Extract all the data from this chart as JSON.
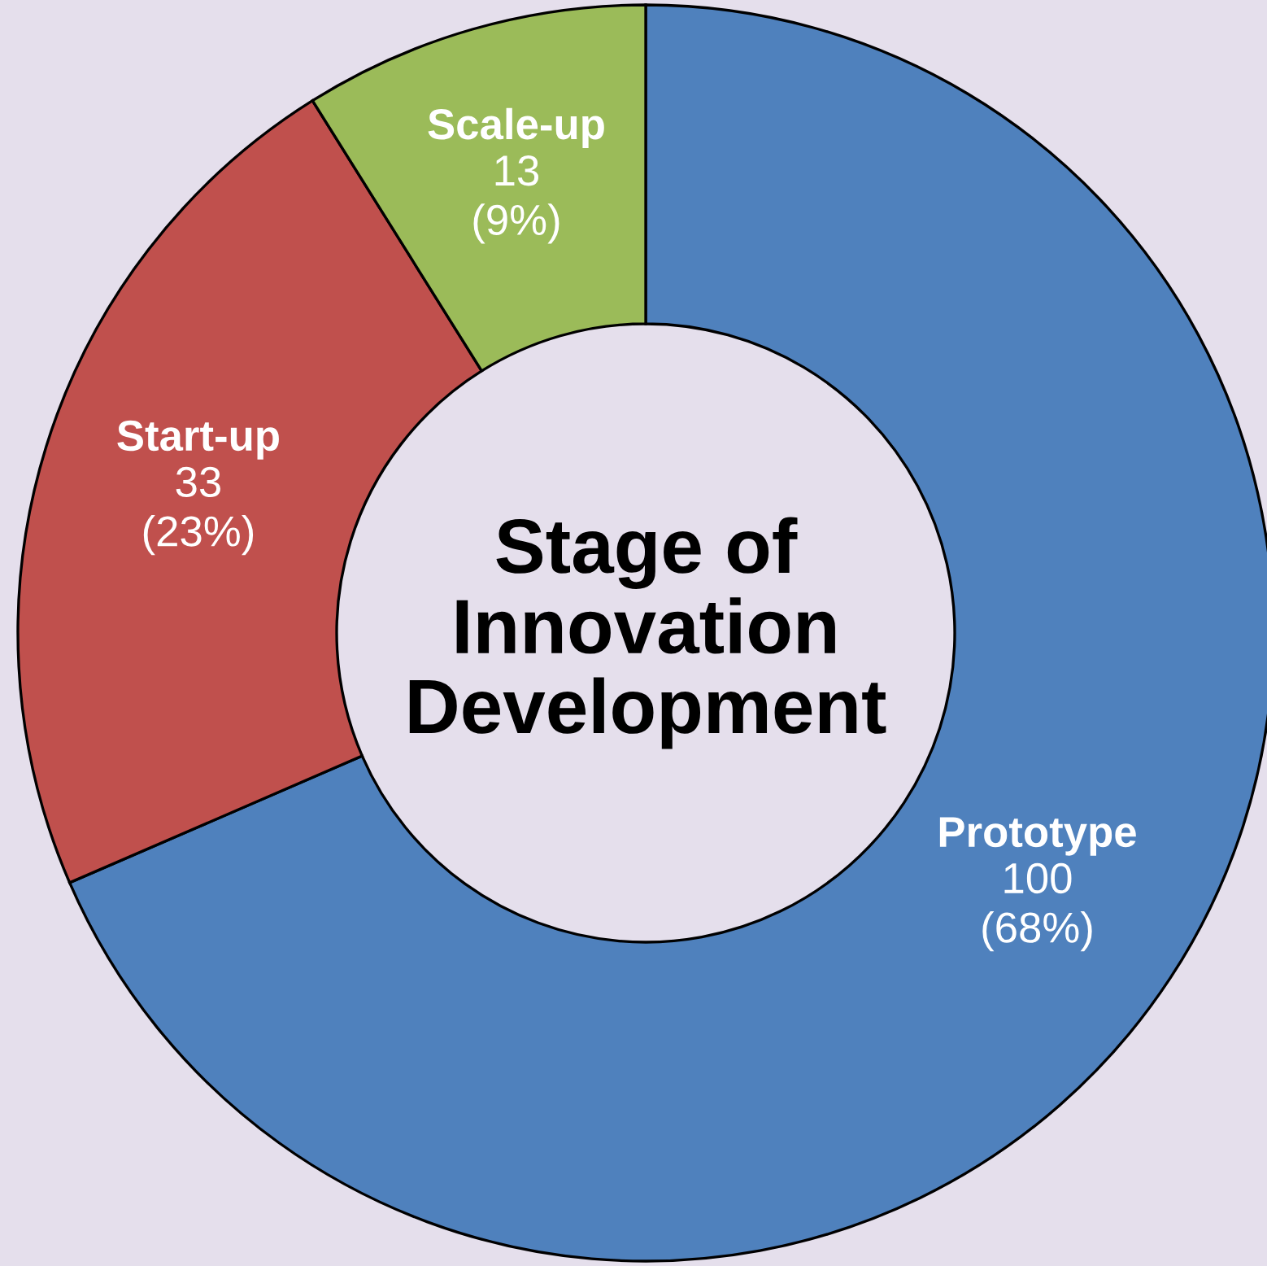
{
  "chart_data": {
    "type": "donut",
    "title": "Stage of\nInnovation\nDevelopment",
    "categories": [
      "Prototype",
      "Start-up",
      "Scale-up"
    ],
    "values": [
      100,
      33,
      13
    ],
    "colors": [
      "#4f81bd",
      "#c0504d",
      "#9bbb59"
    ],
    "value_labels": [
      "100\n(68%)",
      "33\n(23%)",
      "13\n(9%)"
    ]
  }
}
